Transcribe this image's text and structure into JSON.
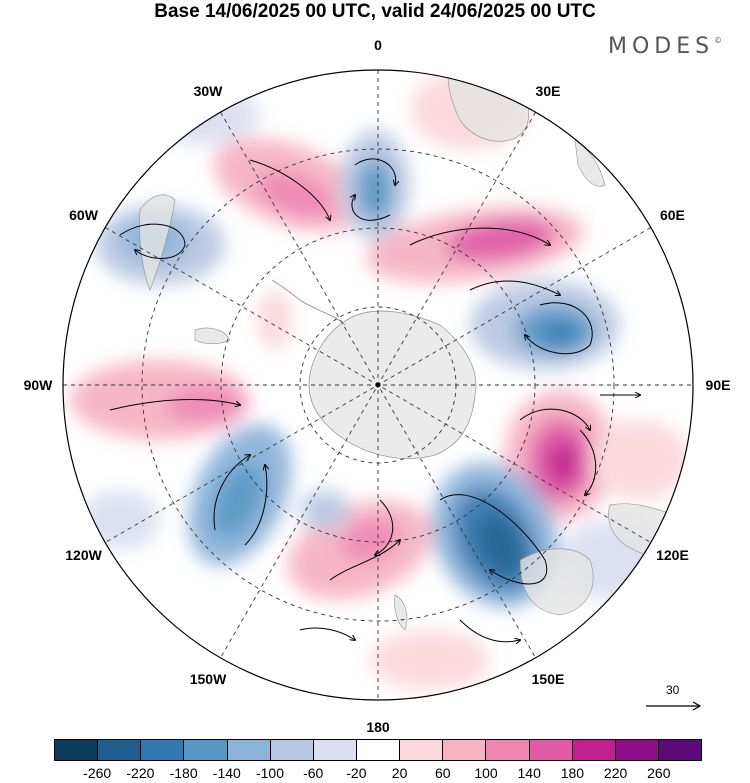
{
  "title": "Base 14/06/2025 00 UTC, valid 24/06/2025 00 UTC",
  "logo": "MODES",
  "logo_mark": "©",
  "longitude_labels": [
    {
      "text": "0",
      "lon": 0
    },
    {
      "text": "30E",
      "lon": 30
    },
    {
      "text": "60E",
      "lon": 60
    },
    {
      "text": "90E",
      "lon": 90
    },
    {
      "text": "120E",
      "lon": 120
    },
    {
      "text": "150E",
      "lon": 150
    },
    {
      "text": "180",
      "lon": 180
    },
    {
      "text": "150W",
      "lon": -150
    },
    {
      "text": "120W",
      "lon": -120
    },
    {
      "text": "90W",
      "lon": -90
    },
    {
      "text": "60W",
      "lon": -60
    },
    {
      "text": "30W",
      "lon": -30
    }
  ],
  "reference_vector": "30",
  "colorbar": {
    "ticks": [
      "-260",
      "-220",
      "-180",
      "-140",
      "-100",
      "-60",
      "-20",
      "20",
      "60",
      "100",
      "140",
      "180",
      "220",
      "260"
    ],
    "colors": [
      "#0d3b5c",
      "#1f5f8f",
      "#3478b0",
      "#5697c6",
      "#8cb3d9",
      "#b9c8e2",
      "#dcdff0",
      "#ffffff",
      "#fbd8dd",
      "#f6b3c4",
      "#ef86b2",
      "#e05aa6",
      "#c21f8f",
      "#8e0f85",
      "#5b0a78"
    ]
  }
}
